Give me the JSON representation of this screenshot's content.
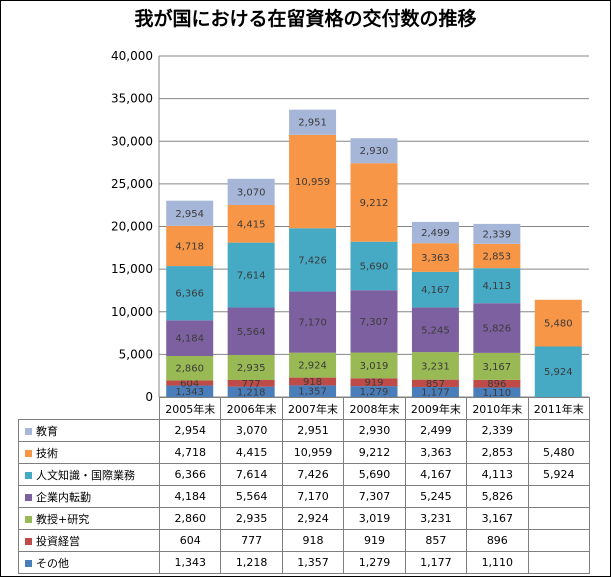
{
  "chart_data": {
    "type": "bar",
    "stacked": true,
    "title": "我が国における在留資格の交付数の推移",
    "categories": [
      "2005年末",
      "2006年末",
      "2007年末",
      "2008年末",
      "2009年末",
      "2010年末",
      "2011年末"
    ],
    "ylim": [
      0,
      40000
    ],
    "yticks": [
      "0",
      "5,000",
      "10,000",
      "15,000",
      "20,000",
      "25,000",
      "30,000",
      "35,000",
      "40,000"
    ],
    "grid": true,
    "legend_placement": "data-table",
    "series": [
      {
        "name": "その他",
        "color": "#4a7ebb",
        "values": [
          1343,
          1218,
          1357,
          1279,
          1177,
          1110,
          null
        ],
        "labels": [
          "1,343",
          "1,218",
          "1,357",
          "1,279",
          "1,177",
          "1,110",
          ""
        ]
      },
      {
        "name": "投資経営",
        "color": "#be4b48",
        "values": [
          604,
          777,
          918,
          919,
          857,
          896,
          null
        ],
        "labels": [
          "604",
          "777",
          "918",
          "919",
          "857",
          "896",
          ""
        ]
      },
      {
        "name": "教授+研究",
        "color": "#98b954",
        "values": [
          2860,
          2935,
          2924,
          3019,
          3231,
          3167,
          null
        ],
        "labels": [
          "2,860",
          "2,935",
          "2,924",
          "3,019",
          "3,231",
          "3,167",
          ""
        ]
      },
      {
        "name": "企業内転勤",
        "color": "#7d60a0",
        "values": [
          4184,
          5564,
          7170,
          7307,
          5245,
          5826,
          null
        ],
        "labels": [
          "4,184",
          "5,564",
          "7,170",
          "7,307",
          "5,245",
          "5,826",
          ""
        ]
      },
      {
        "name": "人文知識・国際業務",
        "color": "#46aac5",
        "values": [
          6366,
          7614,
          7426,
          5690,
          4167,
          4113,
          5924
        ],
        "labels": [
          "6,366",
          "7,614",
          "7,426",
          "5,690",
          "4,167",
          "4,113",
          "5,924"
        ]
      },
      {
        "name": "技術",
        "color": "#f79646",
        "values": [
          4718,
          4415,
          10959,
          9212,
          3363,
          2853,
          5480
        ],
        "labels": [
          "4,718",
          "4,415",
          "10,959",
          "9,212",
          "3,363",
          "2,853",
          "5,480"
        ]
      },
      {
        "name": "教育",
        "color": "#a5b6d9",
        "values": [
          2954,
          3070,
          2951,
          2930,
          2499,
          2339,
          null
        ],
        "labels": [
          "2,954",
          "3,070",
          "2,951",
          "2,930",
          "2,499",
          "2,339",
          ""
        ]
      }
    ]
  }
}
